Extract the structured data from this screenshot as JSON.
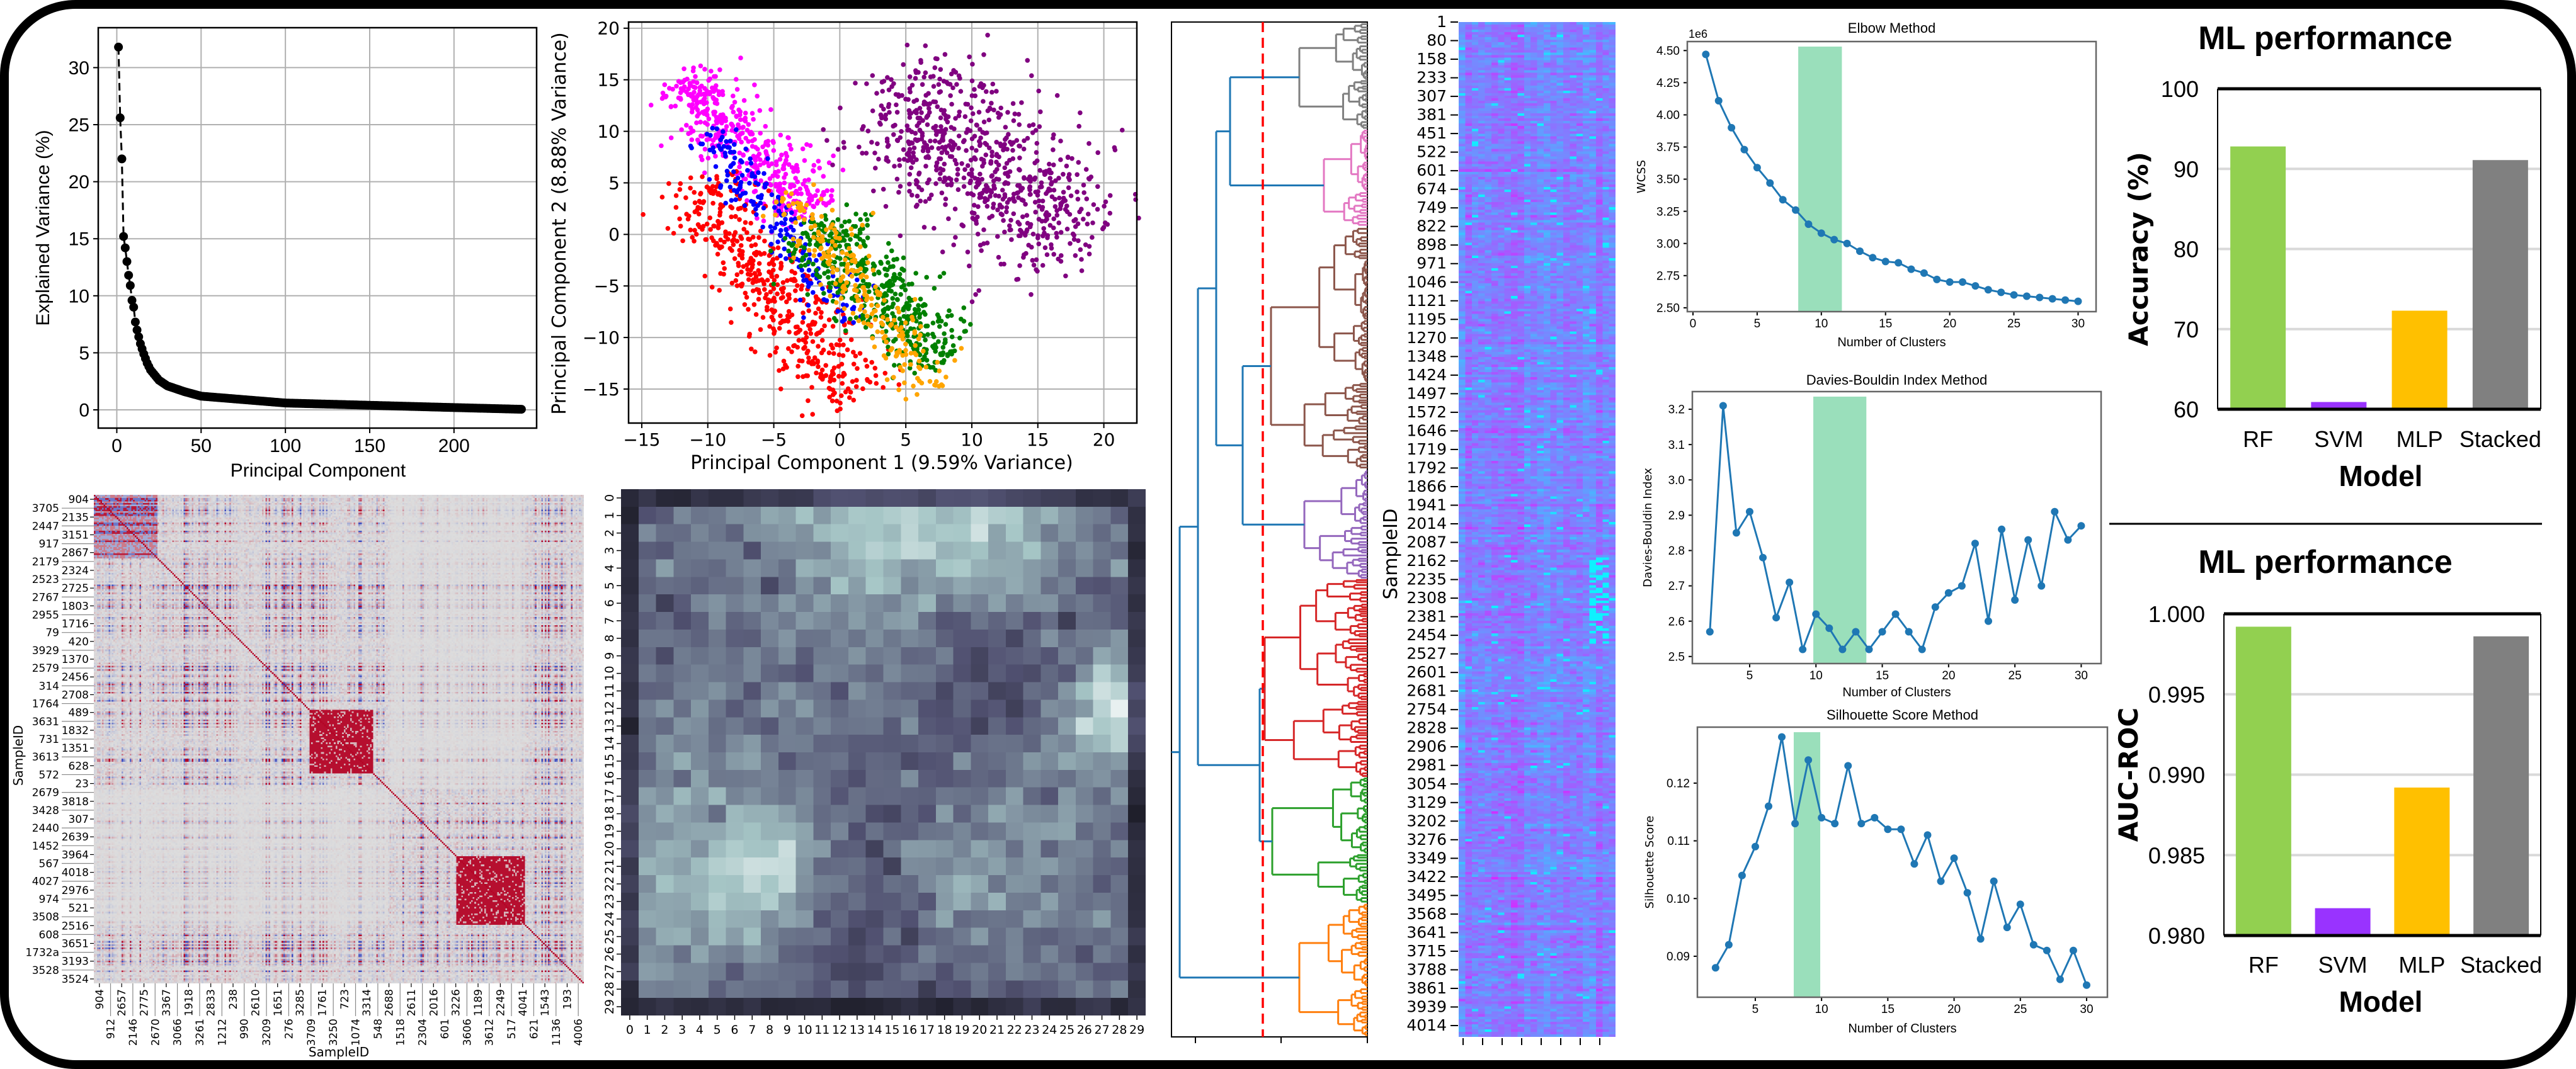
{
  "chart_data": [
    {
      "type": "scatter",
      "xlabel": "Principal Component",
      "ylabel": "Explained Variance (%)",
      "xlim": [
        -11,
        249
      ],
      "ylim": [
        -1.6,
        33.5
      ],
      "xticks": [
        0,
        50,
        100,
        150,
        200
      ],
      "xtick_labels": [
        "0",
        "50",
        "100",
        "150",
        "200"
      ],
      "yticks": [
        0,
        5,
        10,
        15,
        20,
        25,
        30
      ],
      "ytick_labels": [
        "0",
        "5",
        "10",
        "15",
        "20",
        "25",
        "30"
      ],
      "grid": true,
      "line_style": "dashed",
      "color": "#000000",
      "x": [
        1,
        2,
        3,
        4,
        5,
        6,
        7,
        8,
        9,
        10,
        11,
        12,
        14,
        16,
        18,
        20,
        25,
        30,
        40,
        50,
        75,
        100,
        150,
        200,
        240
      ],
      "y": [
        31.8,
        25.6,
        22.0,
        15.2,
        14.2,
        13.0,
        11.8,
        10.9,
        9.6,
        9.0,
        7.7,
        7.0,
        5.8,
        4.9,
        4.1,
        3.5,
        2.6,
        2.1,
        1.6,
        1.2,
        0.9,
        0.6,
        0.4,
        0.2,
        0.05
      ]
    },
    {
      "type": "scatter",
      "xlabel": "Principal Component 1 (9.59% Variance)",
      "ylabel": "Principal Component 2 (8.88% Variance)",
      "xlim": [
        -16,
        22.5
      ],
      "ylim": [
        -18.3,
        20.6
      ],
      "xticks": [
        -15,
        -10,
        -5,
        0,
        5,
        10,
        15,
        20
      ],
      "xtick_labels": [
        "−15",
        "−10",
        "−5",
        "0",
        "5",
        "10",
        "15",
        "20"
      ],
      "yticks": [
        -15,
        -10,
        -5,
        0,
        5,
        10,
        15,
        20
      ],
      "ytick_labels": [
        "−15",
        "−10",
        "−5",
        "0",
        "5",
        "10",
        "15",
        "20"
      ],
      "grid": true,
      "series": [
        {
          "color": "#ff00ff",
          "from": [
            -12,
            15
          ],
          "to": [
            -2,
            2
          ],
          "spread": 1.6
        },
        {
          "color": "#ff0000",
          "from": [
            -11,
            5
          ],
          "to": [
            1,
            -16
          ],
          "spread": 2.0
        },
        {
          "color": "#0000ff",
          "from": [
            -10,
            10
          ],
          "to": [
            1,
            -8
          ],
          "spread": 1.0
        },
        {
          "color": "#008000",
          "from": [
            -2,
            1
          ],
          "to": [
            8,
            -12
          ],
          "spread": 1.7
        },
        {
          "color": "#ffa500",
          "from": [
            -4,
            4
          ],
          "to": [
            7.5,
            -15
          ],
          "spread": 1.2
        },
        {
          "color": "#800080",
          "from": [
            4,
            14
          ],
          "to": [
            18,
            -1
          ],
          "spread": 3.6
        }
      ]
    },
    {
      "type": "heatmap",
      "colormap": "coolwarm",
      "xlabel": "SampleID",
      "ylabel": "SampleID",
      "y_labels": [
        "904",
        "3705",
        "2135",
        "2447",
        "3151",
        "917",
        "2867",
        "2179",
        "2324",
        "2523",
        "2725",
        "2767",
        "1803",
        "2955",
        "1716",
        "79",
        "420",
        "3929",
        "1370",
        "2579",
        "2456",
        "314",
        "2708",
        "1764",
        "489",
        "3631",
        "1832",
        "731",
        "1351",
        "3613",
        "628",
        "572",
        "23",
        "2679",
        "3818",
        "3428",
        "307",
        "2440",
        "2639",
        "1452",
        "3964",
        "567",
        "4018",
        "4027",
        "2976",
        "974",
        "521",
        "3508",
        "2516",
        "608",
        "3651",
        "1732a",
        "3193",
        "3528",
        "3524"
      ],
      "x_labels": [
        "904",
        "912",
        "2657",
        "2146",
        "2775",
        "2670",
        "3367",
        "3066",
        "1918",
        "3261",
        "2833",
        "1212",
        "238",
        "990",
        "2610",
        "3209",
        "1651",
        "276",
        "3285",
        "3709",
        "1761",
        "3250",
        "723",
        "1074",
        "3314",
        "548",
        "2688",
        "1518",
        "2611",
        "2304",
        "2016",
        "601",
        "3226",
        "3606",
        "1189",
        "3612",
        "2249",
        "517",
        "4041",
        "621",
        "1543",
        "1136",
        "193",
        "4006"
      ]
    },
    {
      "type": "heatmap",
      "colormap": "bone",
      "x_labels": [
        "0",
        "1",
        "2",
        "3",
        "4",
        "5",
        "6",
        "7",
        "8",
        "9",
        "10",
        "11",
        "12",
        "13",
        "14",
        "15",
        "16",
        "17",
        "18",
        "19",
        "20",
        "21",
        "22",
        "23",
        "24",
        "25",
        "26",
        "27",
        "28",
        "29"
      ],
      "y_labels": [
        "0",
        "1",
        "2",
        "3",
        "4",
        "5",
        "6",
        "7",
        "8",
        "9",
        "10",
        "11",
        "12",
        "13",
        "14",
        "15",
        "16",
        "17",
        "18",
        "19",
        "20",
        "21",
        "22",
        "23",
        "24",
        "25",
        "26",
        "27",
        "28",
        "29"
      ]
    },
    {
      "type": "dendrogram",
      "cut_line_color": "#ff0000",
      "link_color": "#1f77b4",
      "cluster_colors": [
        "#808080",
        "#e377c2",
        "#8c564b",
        "#9467bd",
        "#d62728",
        "#2ca02c",
        "#ff7f0e"
      ]
    },
    {
      "type": "heatmap",
      "colormap": "cool",
      "ylabel": "SampleID",
      "y_labels": [
        "1",
        "80",
        "158",
        "233",
        "307",
        "381",
        "451",
        "522",
        "601",
        "674",
        "749",
        "822",
        "898",
        "971",
        "1046",
        "1121",
        "1195",
        "1270",
        "1348",
        "1424",
        "1497",
        "1572",
        "1646",
        "1719",
        "1792",
        "1866",
        "1941",
        "2014",
        "2087",
        "2162",
        "2235",
        "2308",
        "2381",
        "2454",
        "2527",
        "2601",
        "2681",
        "2754",
        "2828",
        "2906",
        "2981",
        "3054",
        "3129",
        "3202",
        "3276",
        "3349",
        "3422",
        "3495",
        "3568",
        "3641",
        "3715",
        "3788",
        "3861",
        "3939",
        "4014"
      ]
    },
    {
      "type": "line",
      "title": "Elbow Method",
      "xlabel": "Number of Clusters",
      "ylabel": "WCSS",
      "offset_label": "1e6",
      "xlim": [
        -0.44,
        31.4
      ],
      "ylim": [
        2.47,
        4.57
      ],
      "xticks": [
        0,
        5,
        10,
        15,
        20,
        25,
        30
      ],
      "xtick_labels": [
        "0",
        "5",
        "10",
        "15",
        "20",
        "25",
        "30"
      ],
      "yticks": [
        2.5,
        2.75,
        3.0,
        3.25,
        3.5,
        3.75,
        4.0,
        4.25,
        4.5
      ],
      "ytick_labels": [
        "2.50",
        "2.75",
        "3.00",
        "3.25",
        "3.50",
        "3.75",
        "4.00",
        "4.25",
        "4.50"
      ],
      "highlight": [
        8.2,
        11.6
      ],
      "highlight_color": "#8fdcb4",
      "color": "#1f77b4",
      "x": [
        1,
        2,
        3,
        4,
        5,
        6,
        7,
        8,
        9,
        10,
        11,
        12,
        13,
        14,
        15,
        16,
        17,
        18,
        19,
        20,
        21,
        22,
        23,
        24,
        25,
        26,
        27,
        28,
        29,
        30
      ],
      "y": [
        4.47,
        4.11,
        3.9,
        3.73,
        3.59,
        3.47,
        3.34,
        3.26,
        3.15,
        3.08,
        3.03,
        3.0,
        2.94,
        2.89,
        2.86,
        2.85,
        2.8,
        2.77,
        2.72,
        2.7,
        2.7,
        2.67,
        2.64,
        2.62,
        2.6,
        2.59,
        2.58,
        2.57,
        2.56,
        2.55
      ]
    },
    {
      "type": "line",
      "title": "Davies-Bouldin Index Method",
      "xlabel": "Number of Clusters",
      "ylabel": "Davies-Bouldin Index",
      "xlim": [
        0.68,
        31.5
      ],
      "ylim": [
        2.48,
        3.25
      ],
      "xticks": [
        5,
        10,
        15,
        20,
        25,
        30
      ],
      "xtick_labels": [
        "5",
        "10",
        "15",
        "20",
        "25",
        "30"
      ],
      "yticks": [
        2.5,
        2.6,
        2.7,
        2.8,
        2.9,
        3.0,
        3.1,
        3.2
      ],
      "ytick_labels": [
        "2.5",
        "2.6",
        "2.7",
        "2.8",
        "2.9",
        "3.0",
        "3.1",
        "3.2"
      ],
      "highlight": [
        9.8,
        13.8
      ],
      "highlight_color": "#8fdcb4",
      "color": "#1f77b4",
      "x": [
        2,
        3,
        4,
        5,
        6,
        7,
        8,
        9,
        10,
        11,
        12,
        13,
        14,
        15,
        16,
        17,
        18,
        19,
        20,
        21,
        22,
        23,
        24,
        25,
        26,
        27,
        28,
        29,
        30
      ],
      "y": [
        2.57,
        3.21,
        2.85,
        2.91,
        2.78,
        2.61,
        2.71,
        2.52,
        2.62,
        2.58,
        2.52,
        2.57,
        2.52,
        2.57,
        2.62,
        2.57,
        2.52,
        2.64,
        2.68,
        2.7,
        2.82,
        2.6,
        2.86,
        2.66,
        2.83,
        2.7,
        2.91,
        2.83,
        2.87
      ]
    },
    {
      "type": "line",
      "title": "Silhouette Score Method",
      "xlabel": "Number of Clusters",
      "ylabel": "Silhouette Score",
      "xlim": [
        0.63,
        31.57
      ],
      "ylim": [
        0.0829,
        0.1297
      ],
      "xticks": [
        5,
        10,
        15,
        20,
        25,
        30
      ],
      "xtick_labels": [
        "5",
        "10",
        "15",
        "20",
        "25",
        "30"
      ],
      "yticks": [
        0.09,
        0.1,
        0.11,
        0.12
      ],
      "ytick_labels": [
        "0.09",
        "0.10",
        "0.11",
        "0.12"
      ],
      "highlight": [
        7.9,
        9.9
      ],
      "highlight_color": "#8fdcb4",
      "color": "#1f77b4",
      "x": [
        2,
        3,
        4,
        5,
        6,
        7,
        8,
        9,
        10,
        11,
        12,
        13,
        14,
        15,
        16,
        17,
        18,
        19,
        20,
        21,
        22,
        23,
        24,
        25,
        26,
        27,
        28,
        29,
        30
      ],
      "y": [
        0.088,
        0.092,
        0.104,
        0.109,
        0.116,
        0.128,
        0.113,
        0.124,
        0.114,
        0.113,
        0.123,
        0.113,
        0.114,
        0.112,
        0.112,
        0.106,
        0.111,
        0.103,
        0.107,
        0.101,
        0.093,
        0.103,
        0.095,
        0.099,
        0.092,
        0.091,
        0.086,
        0.091,
        0.085
      ]
    },
    {
      "type": "bar",
      "title": "ML performance",
      "xlabel": "Model",
      "ylabel": "Accuracy (%)",
      "categories": [
        "RF",
        "SVM",
        "MLP",
        "Stacked"
      ],
      "values": [
        92.8,
        60.9,
        72.3,
        91.1
      ],
      "colors": [
        "#92d050",
        "#9933ff",
        "#ffc000",
        "#808080"
      ],
      "ylim": [
        60,
        100
      ],
      "yticks": [
        60,
        70,
        80,
        90,
        100
      ],
      "ytick_labels": [
        "60",
        "70",
        "80",
        "90",
        "100"
      ],
      "grid": true
    },
    {
      "type": "bar",
      "title": "ML performance",
      "xlabel": "Model",
      "ylabel": "AUC-ROC",
      "categories": [
        "RF",
        "SVM",
        "MLP",
        "Stacked"
      ],
      "values": [
        0.9992,
        0.9817,
        0.9892,
        0.9986
      ],
      "colors": [
        "#92d050",
        "#9933ff",
        "#ffc000",
        "#808080"
      ],
      "ylim": [
        0.98,
        1.0
      ],
      "yticks": [
        0.98,
        0.985,
        0.99,
        0.995,
        1.0
      ],
      "ytick_labels": [
        "0.980",
        "0.985",
        "0.990",
        "0.995",
        "1.000"
      ],
      "grid": true
    }
  ]
}
